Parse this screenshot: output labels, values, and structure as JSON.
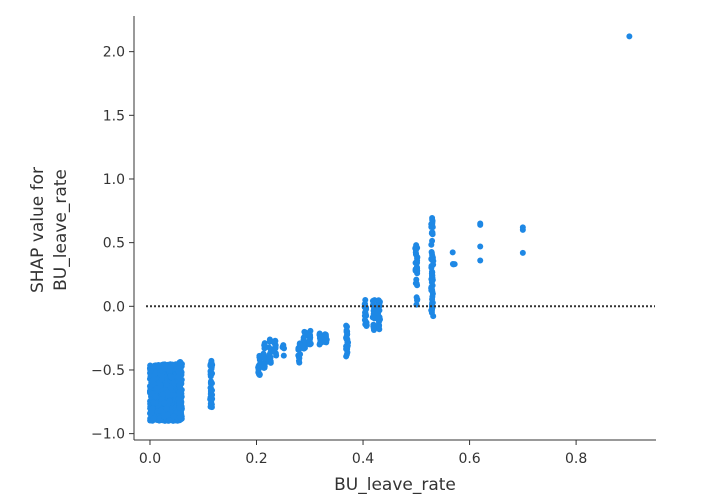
{
  "chart_data": {
    "type": "scatter",
    "title": "",
    "xlabel": "BU_leave_rate",
    "ylabel_lines": [
      "SHAP value for",
      "BU_leave_rate"
    ],
    "xlim": [
      -0.03,
      0.95
    ],
    "ylim": [
      -1.05,
      2.28
    ],
    "xticks": [
      0.0,
      0.2,
      0.4,
      0.6,
      0.8
    ],
    "xtick_labels": [
      "0.0",
      "0.2",
      "0.4",
      "0.6",
      "0.8"
    ],
    "yticks": [
      -1.0,
      -0.5,
      0.0,
      0.5,
      1.0,
      1.5,
      2.0
    ],
    "ytick_labels": [
      "−1.0",
      "−0.5",
      "0.0",
      "0.5",
      "1.0",
      "1.5",
      "2.0"
    ],
    "grid": false,
    "point_color": "#1e88e5",
    "reference_line": {
      "y": 0.0,
      "style": "dotted",
      "color": "#333333"
    },
    "clusters": [
      {
        "x_range": [
          0.0,
          0.06
        ],
        "y_range": [
          -0.9,
          -0.45
        ],
        "count": 900
      },
      {
        "x": 0.055,
        "y_range": [
          -0.88,
          -0.4
        ],
        "count": 40
      },
      {
        "x": 0.115,
        "y_range": [
          -0.8,
          -0.42
        ],
        "count": 40
      },
      {
        "x": 0.205,
        "y_range": [
          -0.55,
          -0.35
        ],
        "count": 15
      },
      {
        "x": 0.215,
        "y_range": [
          -0.5,
          -0.28
        ],
        "count": 15
      },
      {
        "x": 0.225,
        "y_range": [
          -0.45,
          -0.25
        ],
        "count": 15
      },
      {
        "x": 0.235,
        "y_range": [
          -0.4,
          -0.25
        ],
        "count": 12
      },
      {
        "x": 0.25,
        "y_range": [
          -0.4,
          -0.3
        ],
        "count": 5
      },
      {
        "x": 0.28,
        "y_range": [
          -0.45,
          -0.28
        ],
        "count": 12
      },
      {
        "x": 0.29,
        "y_range": [
          -0.35,
          -0.2
        ],
        "count": 14
      },
      {
        "x": 0.3,
        "y_range": [
          -0.32,
          -0.18
        ],
        "count": 12
      },
      {
        "x": 0.32,
        "y_range": [
          -0.3,
          -0.2
        ],
        "count": 12
      },
      {
        "x": 0.33,
        "y_range": [
          -0.3,
          -0.2
        ],
        "count": 10
      },
      {
        "x": 0.37,
        "y_range": [
          -0.4,
          -0.15
        ],
        "count": 25
      },
      {
        "x": 0.405,
        "y_range": [
          -0.2,
          0.05
        ],
        "count": 20
      },
      {
        "x": 0.42,
        "y_range": [
          -0.2,
          0.05
        ],
        "count": 20
      },
      {
        "x": 0.43,
        "y_range": [
          -0.2,
          0.05
        ],
        "count": 20
      },
      {
        "x": 0.5,
        "y_range": [
          0.0,
          0.5
        ],
        "count": 30
      },
      {
        "x": 0.53,
        "y_range": [
          -0.08,
          0.7
        ],
        "count": 60
      },
      {
        "x": 0.57,
        "y_range": [
          0.26,
          0.48
        ],
        "count": 4
      }
    ],
    "points": [
      {
        "x": 0.62,
        "y": 0.65
      },
      {
        "x": 0.62,
        "y": 0.64
      },
      {
        "x": 0.62,
        "y": 0.47
      },
      {
        "x": 0.62,
        "y": 0.36
      },
      {
        "x": 0.7,
        "y": 0.62
      },
      {
        "x": 0.7,
        "y": 0.6
      },
      {
        "x": 0.7,
        "y": 0.42
      },
      {
        "x": 0.9,
        "y": 2.12
      }
    ]
  }
}
